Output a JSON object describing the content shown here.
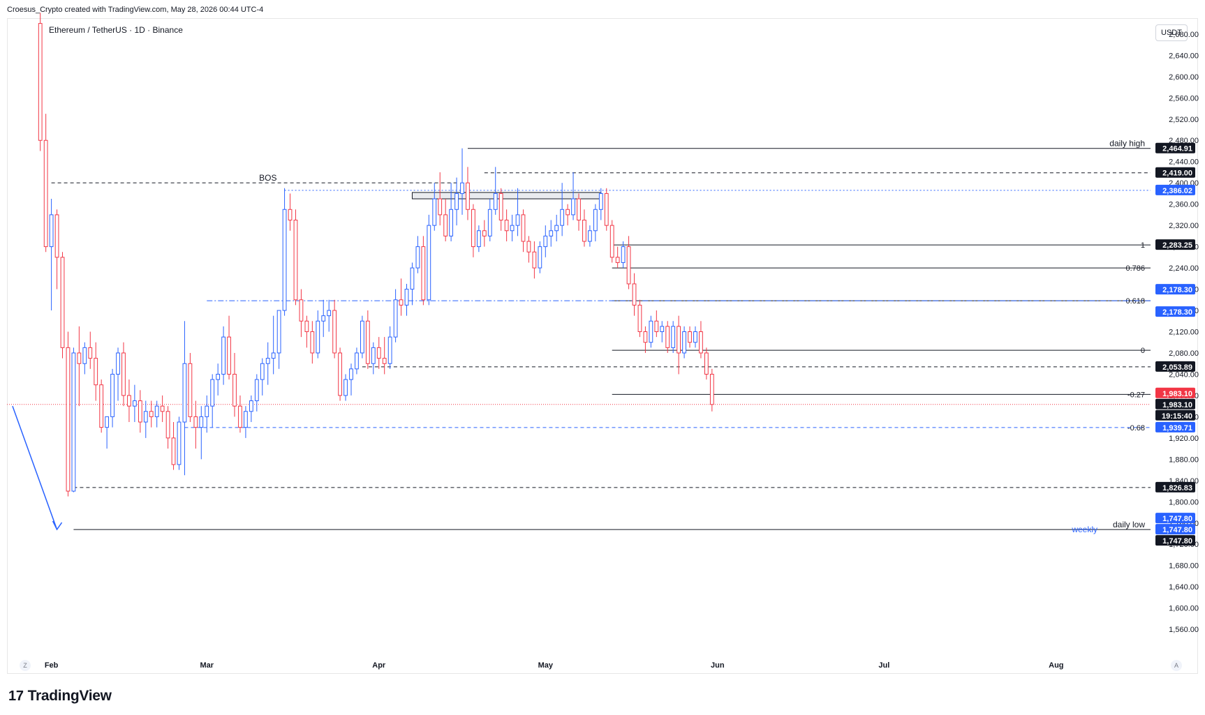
{
  "header": {
    "attribution": "Croesus_Crypto created with TradingView.com, May 28, 2026 00:44 UTC-4"
  },
  "symbol": {
    "title": "Ethereum / TetherUS · 1D · Binance"
  },
  "currency": "USDT",
  "footer": {
    "brand": "TradingView",
    "brand_mark": "17",
    "scale_left": "Z",
    "scale_right": "A"
  },
  "chart_data": {
    "type": "candlestick",
    "title": "Ethereum / TetherUS · 1D · Binance",
    "grid": false,
    "ylim": [
      1530,
      2710
    ],
    "y_ticks": [
      1560,
      1600,
      1640,
      1680,
      1720,
      1760,
      1800,
      1840,
      1880,
      1920,
      1960,
      2000,
      2040,
      2080,
      2120,
      2160,
      2200,
      2240,
      2280,
      2320,
      2360,
      2400,
      2440,
      2480,
      2520,
      2560,
      2600,
      2640,
      2680
    ],
    "y_tick_labels": [
      "1,560.00",
      "1,600.00",
      "1,640.00",
      "1,680.00",
      "1,720.00",
      "1,760.00",
      "1,800.00",
      "1,840.00",
      "1,880.00",
      "1,920.00",
      "1,960.00",
      "2,000.00",
      "2,040.00",
      "2,080.00",
      "2,120.00",
      "2,160.00",
      "2,200.00",
      "2,240.00",
      "2,280.00",
      "2,320.00",
      "2,360.00",
      "2,400.00",
      "2,440.00",
      "2,480.00",
      "2,520.00",
      "2,560.00",
      "2,600.00",
      "2,640.00",
      "2,680.00"
    ],
    "x_labels": [
      {
        "label": "Feb",
        "date": "2026-02-01"
      },
      {
        "label": "Mar",
        "date": "2026-03-01"
      },
      {
        "label": "Apr",
        "date": "2026-04-01"
      },
      {
        "label": "May",
        "date": "2026-05-01"
      },
      {
        "label": "Jun",
        "date": "2026-06-01"
      },
      {
        "label": "Jul",
        "date": "2026-07-01"
      },
      {
        "label": "Aug",
        "date": "2026-08-01"
      }
    ],
    "x_range": [
      "2026-01-24",
      "2026-08-18"
    ],
    "candles_start": "2026-01-30",
    "up_color": "#2962ff",
    "down_color": "#f23645",
    "candles": [
      [
        2700,
        2720,
        2460,
        2480
      ],
      [
        2480,
        2530,
        2270,
        2280
      ],
      [
        2280,
        2370,
        2160,
        2340
      ],
      [
        2340,
        2350,
        2200,
        2260
      ],
      [
        2260,
        2270,
        2070,
        2090
      ],
      [
        2090,
        2120,
        1810,
        1820
      ],
      [
        1820,
        2090,
        1818,
        2080
      ],
      [
        2080,
        2130,
        1980,
        2060
      ],
      [
        2060,
        2100,
        2040,
        2090
      ],
      [
        2090,
        2120,
        2050,
        2070
      ],
      [
        2070,
        2100,
        1990,
        2020
      ],
      [
        2020,
        2030,
        1930,
        1940
      ],
      [
        1940,
        1960,
        1900,
        1960
      ],
      [
        1960,
        2050,
        1940,
        2040
      ],
      [
        2040,
        2090,
        1990,
        2080
      ],
      [
        2080,
        2100,
        1980,
        2000
      ],
      [
        2000,
        2030,
        1950,
        1980
      ],
      [
        1980,
        2020,
        1950,
        1990
      ],
      [
        1990,
        2010,
        1930,
        1950
      ],
      [
        1950,
        1990,
        1920,
        1970
      ],
      [
        1970,
        1990,
        1940,
        1960
      ],
      [
        1960,
        1990,
        1940,
        1980
      ],
      [
        1980,
        2000,
        1950,
        1970
      ],
      [
        1970,
        1980,
        1900,
        1920
      ],
      [
        1920,
        1950,
        1860,
        1870
      ],
      [
        1870,
        1960,
        1860,
        1950
      ],
      [
        1950,
        2140,
        1850,
        2060
      ],
      [
        2060,
        2080,
        1950,
        1960
      ],
      [
        1960,
        1990,
        1900,
        1940
      ],
      [
        1940,
        1980,
        1880,
        1960
      ],
      [
        1960,
        2000,
        1930,
        1980
      ],
      [
        1980,
        2040,
        1940,
        2030
      ],
      [
        2030,
        2060,
        2000,
        2040
      ],
      [
        2040,
        2130,
        2020,
        2110
      ],
      [
        2110,
        2150,
        2030,
        2040
      ],
      [
        2040,
        2080,
        1960,
        1980
      ],
      [
        1980,
        2000,
        1930,
        1940
      ],
      [
        1940,
        1980,
        1920,
        1970
      ],
      [
        1970,
        2000,
        1950,
        1990
      ],
      [
        1990,
        2040,
        1970,
        2030
      ],
      [
        2030,
        2070,
        2000,
        2060
      ],
      [
        2060,
        2100,
        2020,
        2070
      ],
      [
        2070,
        2150,
        2040,
        2080
      ],
      [
        2080,
        2160,
        2050,
        2160
      ],
      [
        2160,
        2390,
        2150,
        2350
      ],
      [
        2350,
        2380,
        2310,
        2330
      ],
      [
        2330,
        2350,
        2170,
        2180
      ],
      [
        2180,
        2200,
        2110,
        2140
      ],
      [
        2140,
        2150,
        2090,
        2120
      ],
      [
        2120,
        2140,
        2060,
        2080
      ],
      [
        2080,
        2160,
        2070,
        2140
      ],
      [
        2140,
        2180,
        2110,
        2150
      ],
      [
        2150,
        2180,
        2120,
        2160
      ],
      [
        2160,
        2180,
        2070,
        2080
      ],
      [
        2080,
        2090,
        1990,
        2000
      ],
      [
        2000,
        2040,
        1990,
        2030
      ],
      [
        2030,
        2060,
        2000,
        2050
      ],
      [
        2050,
        2090,
        2040,
        2080
      ],
      [
        2080,
        2150,
        2070,
        2140
      ],
      [
        2140,
        2160,
        2050,
        2060
      ],
      [
        2060,
        2100,
        2040,
        2090
      ],
      [
        2090,
        2110,
        2050,
        2070
      ],
      [
        2070,
        2110,
        2040,
        2060
      ],
      [
        2060,
        2130,
        2050,
        2110
      ],
      [
        2110,
        2200,
        2100,
        2180
      ],
      [
        2180,
        2220,
        2150,
        2170
      ],
      [
        2170,
        2210,
        2150,
        2200
      ],
      [
        2200,
        2250,
        2170,
        2240
      ],
      [
        2240,
        2300,
        2230,
        2280
      ],
      [
        2280,
        2300,
        2170,
        2180
      ],
      [
        2180,
        2340,
        2170,
        2320
      ],
      [
        2320,
        2400,
        2310,
        2370
      ],
      [
        2370,
        2420,
        2320,
        2340
      ],
      [
        2340,
        2370,
        2290,
        2300
      ],
      [
        2300,
        2400,
        2290,
        2350
      ],
      [
        2350,
        2410,
        2320,
        2380
      ],
      [
        2380,
        2465,
        2340,
        2400
      ],
      [
        2400,
        2430,
        2330,
        2350
      ],
      [
        2350,
        2360,
        2260,
        2280
      ],
      [
        2280,
        2320,
        2270,
        2310
      ],
      [
        2310,
        2330,
        2280,
        2300
      ],
      [
        2300,
        2370,
        2290,
        2350
      ],
      [
        2350,
        2430,
        2340,
        2380
      ],
      [
        2380,
        2390,
        2310,
        2330
      ],
      [
        2330,
        2350,
        2290,
        2310
      ],
      [
        2310,
        2340,
        2290,
        2320
      ],
      [
        2320,
        2390,
        2300,
        2340
      ],
      [
        2340,
        2350,
        2270,
        2290
      ],
      [
        2290,
        2300,
        2250,
        2270
      ],
      [
        2270,
        2290,
        2220,
        2240
      ],
      [
        2240,
        2290,
        2230,
        2280
      ],
      [
        2280,
        2320,
        2260,
        2300
      ],
      [
        2300,
        2330,
        2280,
        2310
      ],
      [
        2310,
        2340,
        2290,
        2320
      ],
      [
        2320,
        2400,
        2300,
        2350
      ],
      [
        2350,
        2360,
        2320,
        2340
      ],
      [
        2340,
        2420,
        2330,
        2370
      ],
      [
        2370,
        2380,
        2310,
        2330
      ],
      [
        2330,
        2350,
        2280,
        2290
      ],
      [
        2290,
        2320,
        2280,
        2310
      ],
      [
        2310,
        2360,
        2290,
        2350
      ],
      [
        2350,
        2390,
        2330,
        2380
      ],
      [
        2380,
        2390,
        2310,
        2320
      ],
      [
        2320,
        2330,
        2250,
        2260
      ],
      [
        2260,
        2280,
        2240,
        2250
      ],
      [
        2250,
        2290,
        2240,
        2280
      ],
      [
        2280,
        2300,
        2200,
        2210
      ],
      [
        2210,
        2230,
        2150,
        2170
      ],
      [
        2170,
        2180,
        2110,
        2120
      ],
      [
        2120,
        2130,
        2080,
        2100
      ],
      [
        2100,
        2150,
        2090,
        2140
      ],
      [
        2140,
        2160,
        2110,
        2120
      ],
      [
        2120,
        2140,
        2100,
        2130
      ],
      [
        2130,
        2140,
        2080,
        2090
      ],
      [
        2090,
        2140,
        2080,
        2130
      ],
      [
        2130,
        2150,
        2040,
        2080
      ],
      [
        2080,
        2130,
        2070,
        2120
      ],
      [
        2120,
        2130,
        2090,
        2100
      ],
      [
        2100,
        2130,
        2090,
        2120
      ],
      [
        2120,
        2140,
        2070,
        2080
      ],
      [
        2080,
        2090,
        2030,
        2040
      ],
      [
        2040,
        2050,
        1970,
        1983.1
      ]
    ],
    "horizontal_levels": [
      {
        "label": "daily high",
        "value": 2464.91,
        "value_label": "2,464.91",
        "style": "solid",
        "color": "#131722",
        "from": "2026-04-17"
      },
      {
        "value": 2419.0,
        "value_label": "2,419.00",
        "style": "dashed",
        "color": "#131722",
        "from": "2026-04-20"
      },
      {
        "value": 2386.02,
        "value_label": "2,386.02",
        "style": "dotted",
        "color": "#2962ff",
        "from": "2026-03-15"
      },
      {
        "label": "BOS",
        "value": 2400,
        "style": "dashed",
        "color": "#131722",
        "from": "2026-02-01",
        "to": "2026-04-15"
      },
      {
        "value": 2283.25,
        "value_label": "2,283.25",
        "fib": "1",
        "style": "solid",
        "color": "#131722",
        "from": "2026-05-13"
      },
      {
        "value": 2240,
        "fib": "0.786",
        "style": "solid",
        "color": "#131722",
        "from": "2026-05-13"
      },
      {
        "value": 2178.3,
        "value_label": "2,178.30",
        "fib": "0.618",
        "style": "solid",
        "color": "#131722",
        "from": "2026-05-13"
      },
      {
        "value": 2178.3,
        "value_label": "2,178.30",
        "style": "dashdot",
        "color": "#2962ff",
        "from": "2026-03-01"
      },
      {
        "value": 2085,
        "fib": "0",
        "style": "solid",
        "color": "#131722",
        "from": "2026-05-13"
      },
      {
        "value": 2053.89,
        "value_label": "2,053.89",
        "style": "dashed",
        "color": "#131722",
        "from": "2026-03-29"
      },
      {
        "value": 2002,
        "fib": "-0.27",
        "style": "solid",
        "color": "#131722",
        "from": "2026-05-13"
      },
      {
        "value": 1939.71,
        "value_label": "1,939.71",
        "fib": "-0.68",
        "style": "dashed",
        "color": "#2962ff",
        "from": "2026-02-25"
      },
      {
        "value": 1826.83,
        "value_label": "1,826.83",
        "style": "dashed",
        "color": "#131722",
        "from": "2026-02-05"
      },
      {
        "label": "daily low",
        "value": 1747.8,
        "value_label": "1,747.80",
        "style": "solid",
        "color": "#131722",
        "from": "2026-02-05"
      }
    ],
    "price_tags": [
      {
        "value": 2464.91,
        "text": "2,464.91",
        "bg": "#131722",
        "fg": "#ffffff"
      },
      {
        "value": 2419.0,
        "text": "2,419.00",
        "bg": "#131722",
        "fg": "#ffffff"
      },
      {
        "value": 2386.02,
        "text": "2,386.02",
        "bg": "#2962ff",
        "fg": "#ffffff"
      },
      {
        "value": 2283.25,
        "text": "2,283.25",
        "bg": "#131722",
        "fg": "#ffffff"
      },
      {
        "value": 2178.3,
        "text": "2,178.30",
        "bg": "#2962ff",
        "fg": "#ffffff",
        "offset": -1
      },
      {
        "value": 2178.3,
        "text": "2,178.30",
        "bg": "#2962ff",
        "fg": "#ffffff",
        "offset": 1
      },
      {
        "value": 2053.89,
        "text": "2,053.89",
        "bg": "#131722",
        "fg": "#ffffff"
      },
      {
        "value": 1983.1,
        "text": "1,983.10",
        "bg": "#f23645",
        "fg": "#ffffff",
        "offset": -1
      },
      {
        "value": 1983.1,
        "text": "1,983.10",
        "bg": "#131722",
        "fg": "#ffffff"
      },
      {
        "value": 1983.1,
        "text": "19:15:40",
        "bg": "#131722",
        "fg": "#ffffff",
        "offset": 1
      },
      {
        "value": 1939.71,
        "text": "1,939.71",
        "bg": "#2962ff",
        "fg": "#ffffff"
      },
      {
        "value": 1826.83,
        "text": "1,826.83",
        "bg": "#131722",
        "fg": "#ffffff"
      },
      {
        "value": 1747.8,
        "text": "1,747.80",
        "bg": "#2962ff",
        "fg": "#ffffff",
        "offset": -1
      },
      {
        "value": 1747.8,
        "text": "1,747.80",
        "bg": "#2962ff",
        "fg": "#ffffff"
      },
      {
        "value": 1747.8,
        "text": "1,747.80",
        "bg": "#131722",
        "fg": "#ffffff",
        "offset": 1
      }
    ],
    "current_price": {
      "value": 1983.1,
      "color": "#f23645"
    },
    "annotations": [
      {
        "text": "BOS"
      },
      {
        "text": "daily high"
      },
      {
        "text": "daily low"
      },
      {
        "text": "weekly",
        "color": "#2962ff"
      }
    ],
    "supply_zone": {
      "from": "2026-04-07",
      "to": "2026-05-11",
      "top": 2382,
      "bottom": 2370
    },
    "arrow": {
      "from_date": "2026-01-25",
      "from_value": 1980,
      "to_date": "2026-02-02",
      "to_value": 1747.8,
      "color": "#2962ff"
    }
  }
}
